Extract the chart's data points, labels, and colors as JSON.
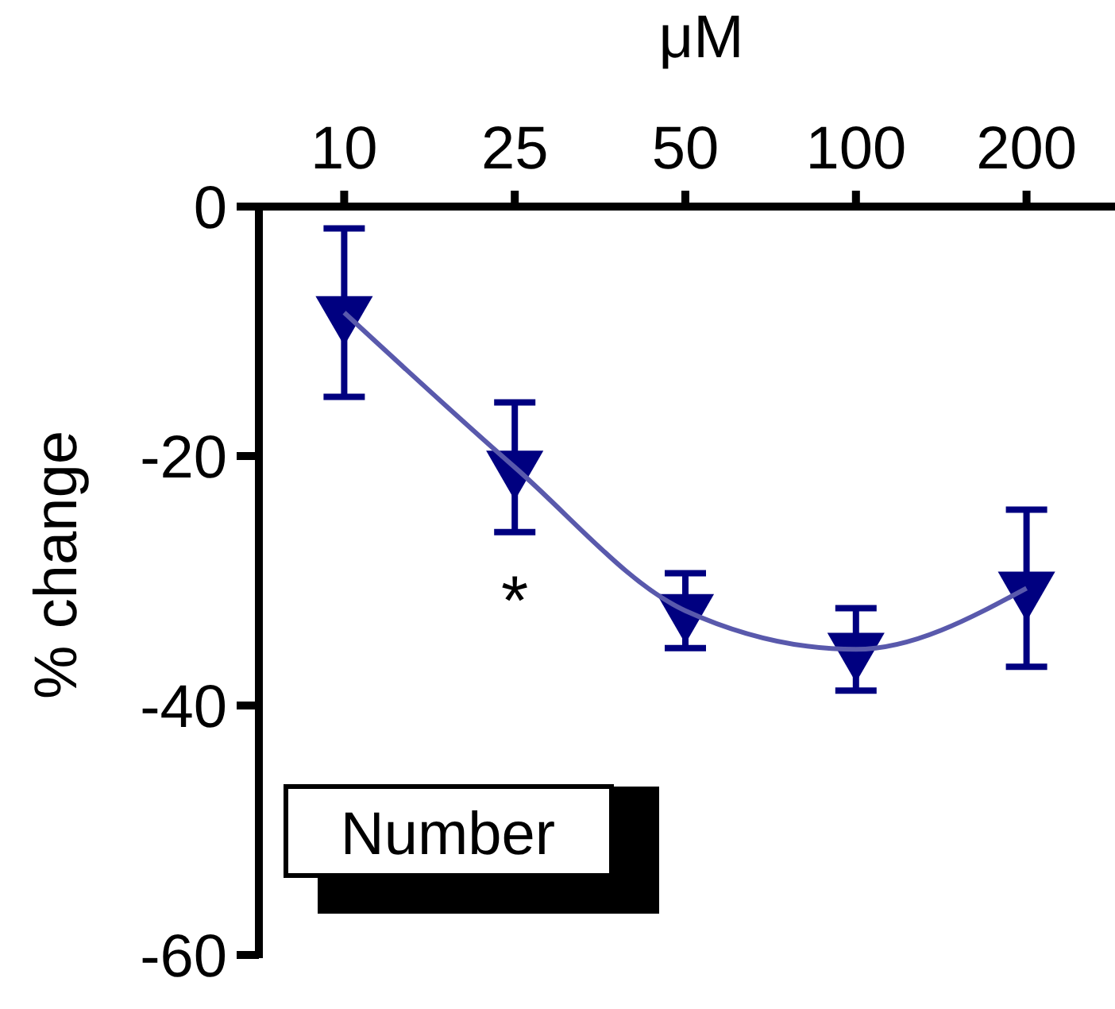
{
  "chart_data": {
    "type": "line",
    "xlabel": "μM",
    "ylabel": "% change",
    "categories": [
      "10",
      "25",
      "50",
      "100",
      "200"
    ],
    "series": [
      {
        "color": "#000080",
        "values": [
          -8.5,
          -20.9,
          -32.4,
          -35.5,
          -30.6
        ],
        "errors": [
          6.75,
          5.2,
          3.0,
          3.3,
          6.3
        ]
      }
    ],
    "ylim": [
      -60,
      0
    ],
    "yticks": [
      0,
      -20,
      -40,
      -60
    ],
    "grid": false,
    "marker": "triangle",
    "line_style": "solid",
    "annotations": [
      "*",
      "Number"
    ]
  }
}
